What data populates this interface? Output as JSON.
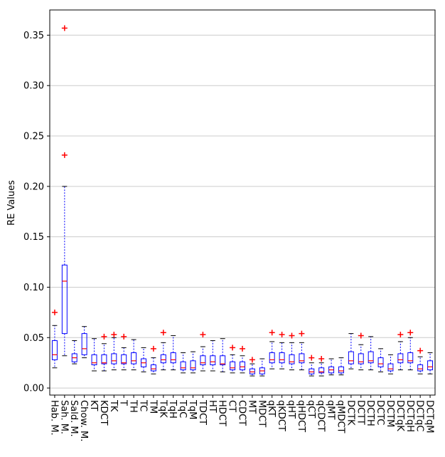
{
  "chart_data": {
    "type": "box",
    "ylabel": "RE Values",
    "categories": [
      "Hab. M.",
      "Sah. M.",
      "Sald. M.",
      "Chow. M.",
      "KT",
      "KDCT",
      "TK",
      "T",
      "TH",
      "TC",
      "TM",
      "TqK",
      "TqH",
      "TqC",
      "TqM",
      "TDCT",
      "HT",
      "HDCT",
      "CT",
      "CDCT",
      "MT",
      "MDCT",
      "qKT",
      "qKDCT",
      "qHT",
      "qHDCT",
      "qCT",
      "qCDCT",
      "qMT",
      "qMDCT",
      "DCTK",
      "DCTT",
      "DCTH",
      "DCTC",
      "DCTM",
      "DCTqK",
      "DCTqH",
      "DCTqC",
      "DCTqM"
    ],
    "boxes": [
      {
        "low": 0.02,
        "q1": 0.028,
        "median": 0.033,
        "q3": 0.047,
        "high": 0.062,
        "outliers": [
          0.075
        ]
      },
      {
        "low": 0.032,
        "q1": 0.054,
        "median": 0.106,
        "q3": 0.122,
        "high": 0.2,
        "outliers": [
          0.231,
          0.357
        ]
      },
      {
        "low": 0.024,
        "q1": 0.026,
        "median": 0.03,
        "q3": 0.034,
        "high": 0.047,
        "outliers": []
      },
      {
        "low": 0.03,
        "q1": 0.033,
        "median": 0.039,
        "q3": 0.054,
        "high": 0.061,
        "outliers": []
      },
      {
        "low": 0.017,
        "q1": 0.023,
        "median": 0.025,
        "q3": 0.033,
        "high": 0.049,
        "outliers": []
      },
      {
        "low": 0.017,
        "q1": 0.024,
        "median": 0.025,
        "q3": 0.033,
        "high": 0.044,
        "outliers": [
          0.051
        ]
      },
      {
        "low": 0.018,
        "q1": 0.024,
        "median": 0.027,
        "q3": 0.034,
        "high": 0.05,
        "outliers": [
          0.053
        ]
      },
      {
        "low": 0.018,
        "q1": 0.024,
        "median": 0.025,
        "q3": 0.033,
        "high": 0.04,
        "outliers": [
          0.051
        ]
      },
      {
        "low": 0.018,
        "q1": 0.024,
        "median": 0.027,
        "q3": 0.035,
        "high": 0.048,
        "outliers": []
      },
      {
        "low": 0.016,
        "q1": 0.021,
        "median": 0.025,
        "q3": 0.029,
        "high": 0.04,
        "outliers": []
      },
      {
        "low": 0.014,
        "q1": 0.017,
        "median": 0.019,
        "q3": 0.023,
        "high": 0.03,
        "outliers": [
          0.039
        ]
      },
      {
        "low": 0.018,
        "q1": 0.025,
        "median": 0.028,
        "q3": 0.033,
        "high": 0.045,
        "outliers": [
          0.055
        ]
      },
      {
        "low": 0.018,
        "q1": 0.025,
        "median": 0.028,
        "q3": 0.035,
        "high": 0.052,
        "outliers": []
      },
      {
        "low": 0.015,
        "q1": 0.018,
        "median": 0.02,
        "q3": 0.026,
        "high": 0.035,
        "outliers": []
      },
      {
        "low": 0.015,
        "q1": 0.018,
        "median": 0.02,
        "q3": 0.027,
        "high": 0.036,
        "outliers": []
      },
      {
        "low": 0.017,
        "q1": 0.023,
        "median": 0.025,
        "q3": 0.032,
        "high": 0.041,
        "outliers": [
          0.053
        ]
      },
      {
        "low": 0.017,
        "q1": 0.023,
        "median": 0.026,
        "q3": 0.032,
        "high": 0.047,
        "outliers": []
      },
      {
        "low": 0.016,
        "q1": 0.023,
        "median": 0.024,
        "q3": 0.032,
        "high": 0.049,
        "outliers": []
      },
      {
        "low": 0.015,
        "q1": 0.018,
        "median": 0.02,
        "q3": 0.026,
        "high": 0.033,
        "outliers": [
          0.04
        ]
      },
      {
        "low": 0.015,
        "q1": 0.018,
        "median": 0.021,
        "q3": 0.026,
        "high": 0.032,
        "outliers": [
          0.039
        ]
      },
      {
        "low": 0.012,
        "q1": 0.014,
        "median": 0.016,
        "q3": 0.019,
        "high": 0.024,
        "outliers": [
          0.028
        ]
      },
      {
        "low": 0.012,
        "q1": 0.014,
        "median": 0.017,
        "q3": 0.02,
        "high": 0.029,
        "outliers": []
      },
      {
        "low": 0.019,
        "q1": 0.025,
        "median": 0.028,
        "q3": 0.035,
        "high": 0.046,
        "outliers": [
          0.055
        ]
      },
      {
        "low": 0.019,
        "q1": 0.025,
        "median": 0.028,
        "q3": 0.035,
        "high": 0.045,
        "outliers": [
          0.053
        ]
      },
      {
        "low": 0.018,
        "q1": 0.024,
        "median": 0.026,
        "q3": 0.033,
        "high": 0.045,
        "outliers": [
          0.052
        ]
      },
      {
        "low": 0.018,
        "q1": 0.025,
        "median": 0.027,
        "q3": 0.034,
        "high": 0.045,
        "outliers": [
          0.054
        ]
      },
      {
        "low": 0.012,
        "q1": 0.014,
        "median": 0.016,
        "q3": 0.019,
        "high": 0.025,
        "outliers": [
          0.03
        ]
      },
      {
        "low": 0.012,
        "q1": 0.015,
        "median": 0.016,
        "q3": 0.02,
        "high": 0.025,
        "outliers": [
          0.029
        ]
      },
      {
        "low": 0.013,
        "q1": 0.015,
        "median": 0.018,
        "q3": 0.021,
        "high": 0.029,
        "outliers": []
      },
      {
        "low": 0.013,
        "q1": 0.015,
        "median": 0.017,
        "q3": 0.021,
        "high": 0.03,
        "outliers": []
      },
      {
        "low": 0.019,
        "q1": 0.024,
        "median": 0.027,
        "q3": 0.036,
        "high": 0.054,
        "outliers": []
      },
      {
        "low": 0.018,
        "q1": 0.024,
        "median": 0.026,
        "q3": 0.034,
        "high": 0.043,
        "outliers": [
          0.052
        ]
      },
      {
        "low": 0.018,
        "q1": 0.025,
        "median": 0.027,
        "q3": 0.036,
        "high": 0.051,
        "outliers": []
      },
      {
        "low": 0.016,
        "q1": 0.021,
        "median": 0.024,
        "q3": 0.03,
        "high": 0.039,
        "outliers": []
      },
      {
        "low": 0.014,
        "q1": 0.017,
        "median": 0.019,
        "q3": 0.024,
        "high": 0.033,
        "outliers": []
      },
      {
        "low": 0.018,
        "q1": 0.025,
        "median": 0.028,
        "q3": 0.034,
        "high": 0.046,
        "outliers": [
          0.053
        ]
      },
      {
        "low": 0.018,
        "q1": 0.025,
        "median": 0.027,
        "q3": 0.035,
        "high": 0.05,
        "outliers": [
          0.055
        ]
      },
      {
        "low": 0.014,
        "q1": 0.017,
        "median": 0.019,
        "q3": 0.023,
        "high": 0.031,
        "outliers": [
          0.037
        ]
      },
      {
        "low": 0.014,
        "q1": 0.018,
        "median": 0.021,
        "q3": 0.027,
        "high": 0.035,
        "outliers": []
      }
    ],
    "box_color": "#0000ff",
    "median_color": "#ff0000",
    "outlier_color": "#ff0000",
    "ylim": [
      -0.007,
      0.375
    ],
    "yticks": [
      {
        "value": 0,
        "label": "0.00"
      },
      0.05,
      {
        "value": 0.1,
        "label": "0.10"
      },
      0.15,
      {
        "value": 0.2,
        "label": "0.20"
      },
      0.25,
      {
        "value": 0.3,
        "label": "0.30"
      },
      0.35
    ],
    "grid": true
  }
}
